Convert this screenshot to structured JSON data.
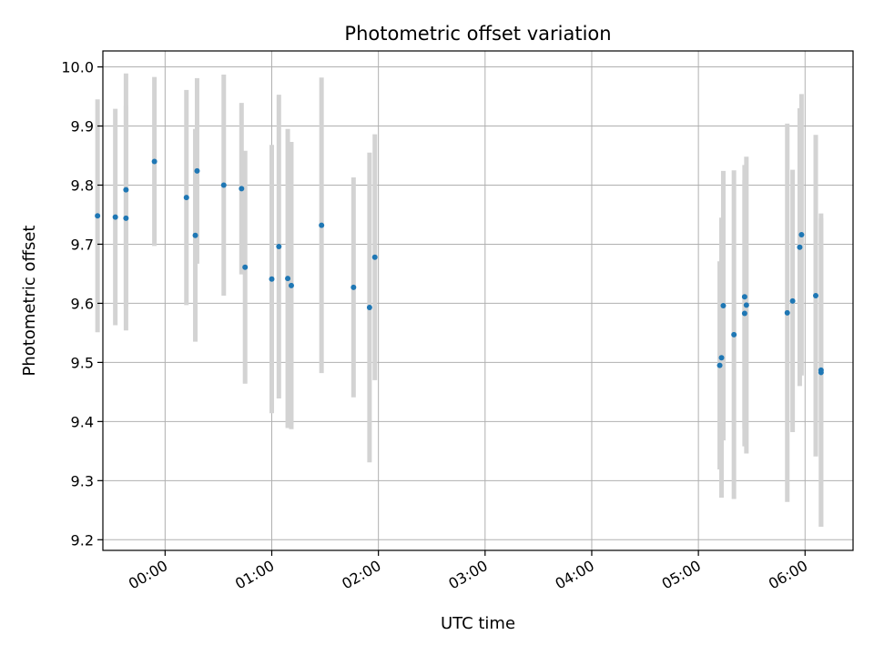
{
  "chart_data": {
    "type": "scatter",
    "title": "Photometric offset variation",
    "xlabel": "UTC time",
    "ylabel": "Photometric offset",
    "x_unit": "UTC time (HH:MM)",
    "xlim": [
      "-00:35",
      "06:27"
    ],
    "ylim": [
      9.182,
      10.027
    ],
    "grid": true,
    "x_ticks": [
      "00:00",
      "01:00",
      "02:00",
      "03:00",
      "04:00",
      "05:00",
      "06:00"
    ],
    "y_ticks": [
      "9.2",
      "9.3",
      "9.4",
      "9.5",
      "9.6",
      "9.7",
      "9.8",
      "9.9",
      "10.0"
    ],
    "colors": {
      "point": "#1f77b4",
      "errorbar": "#d3d3d3",
      "grid": "#b0b0b0"
    },
    "points": [
      {
        "x": "-00:38",
        "y": 9.748,
        "err": 0.197
      },
      {
        "x": "-00:28",
        "y": 9.746,
        "err": 0.183
      },
      {
        "x": "-00:22",
        "y": 9.792,
        "err": 0.197
      },
      {
        "x": "-00:22",
        "y": 9.744,
        "err": 0.19
      },
      {
        "x": "-00:06",
        "y": 9.84,
        "err": 0.143
      },
      {
        "x": "00:12",
        "y": 9.779,
        "err": 0.182
      },
      {
        "x": "00:17",
        "y": 9.715,
        "err": 0.18
      },
      {
        "x": "00:18",
        "y": 9.824,
        "err": 0.157
      },
      {
        "x": "00:33",
        "y": 9.8,
        "err": 0.187
      },
      {
        "x": "00:43",
        "y": 9.794,
        "err": 0.145
      },
      {
        "x": "00:45",
        "y": 9.661,
        "err": 0.197
      },
      {
        "x": "01:00",
        "y": 9.641,
        "err": 0.227
      },
      {
        "x": "01:04",
        "y": 9.696,
        "err": 0.257
      },
      {
        "x": "01:09",
        "y": 9.642,
        "err": 0.253
      },
      {
        "x": "01:11",
        "y": 9.63,
        "err": 0.243
      },
      {
        "x": "01:28",
        "y": 9.732,
        "err": 0.25
      },
      {
        "x": "01:46",
        "y": 9.627,
        "err": 0.186
      },
      {
        "x": "01:55",
        "y": 9.593,
        "err": 0.262
      },
      {
        "x": "01:58",
        "y": 9.678,
        "err": 0.208
      },
      {
        "x": "05:12",
        "y": 9.495,
        "err": 0.176
      },
      {
        "x": "05:13",
        "y": 9.508,
        "err": 0.237
      },
      {
        "x": "05:14",
        "y": 9.596,
        "err": 0.228
      },
      {
        "x": "05:20",
        "y": 9.547,
        "err": 0.278
      },
      {
        "x": "05:26",
        "y": 9.583,
        "err": 0.225
      },
      {
        "x": "05:26",
        "y": 9.611,
        "err": 0.223
      },
      {
        "x": "05:27",
        "y": 9.597,
        "err": 0.251
      },
      {
        "x": "05:50",
        "y": 9.584,
        "err": 0.32
      },
      {
        "x": "05:53",
        "y": 9.604,
        "err": 0.222
      },
      {
        "x": "05:57",
        "y": 9.695,
        "err": 0.235
      },
      {
        "x": "05:58",
        "y": 9.716,
        "err": 0.238
      },
      {
        "x": "06:06",
        "y": 9.613,
        "err": 0.272
      },
      {
        "x": "06:09",
        "y": 9.483,
        "err": 0.261
      },
      {
        "x": "06:09",
        "y": 9.487,
        "err": 0.265
      }
    ]
  }
}
